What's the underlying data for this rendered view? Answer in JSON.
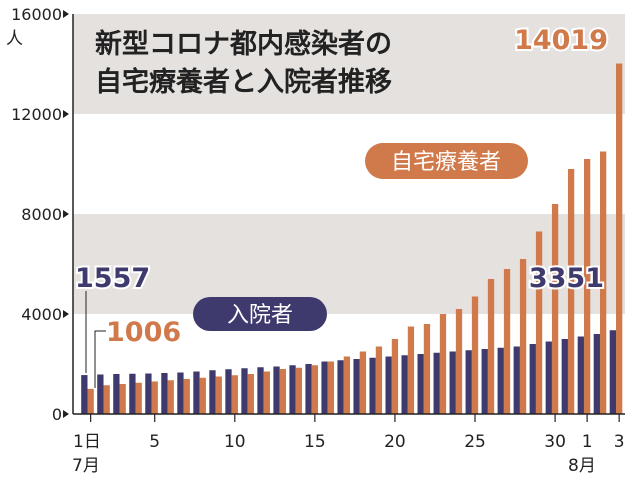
{
  "title_line1": "新型コロナ都内感染者の",
  "title_line2": "自宅療養者と入院者推移",
  "unit_label": "人",
  "month_labels": [
    "7月",
    "8月"
  ],
  "colors": {
    "home": "#d0794a",
    "hospital": "#3f3a6e",
    "band": "#e4e1df",
    "axis": "#222222",
    "callout_stroke": "#ffffff"
  },
  "chart_data": {
    "type": "bar",
    "title": "新型コロナ都内感染者の自宅療養者と入院者推移",
    "ylabel": "人",
    "ylim": [
      0,
      16000
    ],
    "yticks": [
      0,
      4000,
      8000,
      12000,
      16000
    ],
    "ytick_labels": [
      "0",
      "4000",
      "8000",
      "12000",
      "16000"
    ],
    "categories": [
      "7/1",
      "7/2",
      "7/3",
      "7/4",
      "7/5",
      "7/6",
      "7/7",
      "7/8",
      "7/9",
      "7/10",
      "7/11",
      "7/12",
      "7/13",
      "7/14",
      "7/15",
      "7/16",
      "7/17",
      "7/18",
      "7/19",
      "7/20",
      "7/21",
      "7/22",
      "7/23",
      "7/24",
      "7/25",
      "7/26",
      "7/27",
      "7/28",
      "7/29",
      "7/30",
      "7/31",
      "8/1",
      "8/2",
      "8/3"
    ],
    "xtick_labels": [
      {
        "index": 0,
        "text": "1日"
      },
      {
        "index": 4,
        "text": "5"
      },
      {
        "index": 9,
        "text": "10"
      },
      {
        "index": 14,
        "text": "15"
      },
      {
        "index": 19,
        "text": "20"
      },
      {
        "index": 24,
        "text": "25"
      },
      {
        "index": 29,
        "text": "30"
      },
      {
        "index": 31,
        "text": "1"
      },
      {
        "index": 33,
        "text": "3"
      }
    ],
    "series": [
      {
        "name": "入院者",
        "values": [
          1557,
          1580,
          1600,
          1610,
          1620,
          1640,
          1660,
          1700,
          1750,
          1790,
          1830,
          1870,
          1900,
          1950,
          2000,
          2100,
          2150,
          2200,
          2250,
          2300,
          2350,
          2400,
          2450,
          2500,
          2550,
          2600,
          2650,
          2700,
          2800,
          2900,
          3000,
          3100,
          3200,
          3351
        ]
      },
      {
        "name": "自宅療養者",
        "values": [
          1006,
          1150,
          1200,
          1250,
          1300,
          1350,
          1400,
          1450,
          1500,
          1550,
          1600,
          1700,
          1800,
          1850,
          1950,
          2100,
          2300,
          2500,
          2700,
          3000,
          3500,
          3600,
          4000,
          4200,
          4700,
          5400,
          5800,
          6200,
          7300,
          8400,
          9800,
          10200,
          10500,
          14019
        ]
      }
    ],
    "callouts": {
      "hospital_first": "1557",
      "home_first": "1006",
      "hospital_last": "3351",
      "home_last": "14019"
    },
    "series_labels": {
      "home": "自宅療養者",
      "hospital": "入院者"
    }
  }
}
